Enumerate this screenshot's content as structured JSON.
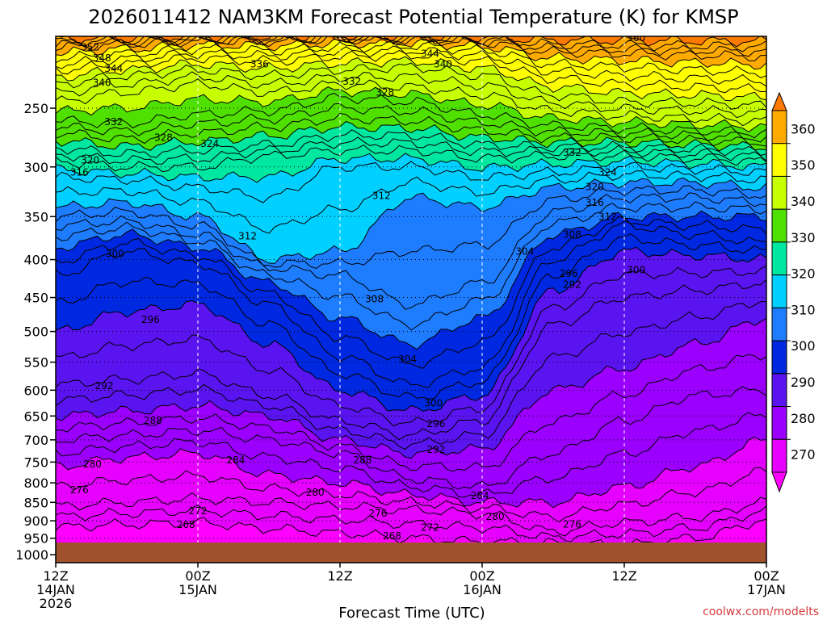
{
  "chart_data": {
    "type": "heatmap",
    "title": "2026011412 NAM3KM Forecast Potential Temperature (K) for KMSP",
    "xlabel": "Forecast Time (UTC)",
    "ylabel": "",
    "credit": "coolwx.com/modelts",
    "x_ticks": [
      {
        "hour": 0,
        "l1": "12Z",
        "l2": "14JAN",
        "l3": "2026"
      },
      {
        "hour": 12,
        "l1": "00Z",
        "l2": "15JAN",
        "l3": ""
      },
      {
        "hour": 24,
        "l1": "12Z",
        "l2": "",
        "l3": ""
      },
      {
        "hour": 36,
        "l1": "00Z",
        "l2": "16JAN",
        "l3": ""
      },
      {
        "hour": 48,
        "l1": "12Z",
        "l2": "",
        "l3": ""
      },
      {
        "hour": 60,
        "l1": "00Z",
        "l2": "17JAN",
        "l3": ""
      }
    ],
    "x_range_hours": [
      0,
      60
    ],
    "y_ticks": [
      250,
      300,
      350,
      400,
      450,
      500,
      550,
      600,
      650,
      700,
      750,
      800,
      850,
      900,
      950,
      1000
    ],
    "y_range_hpa": [
      200,
      1025
    ],
    "y_scale": "log-pressure",
    "colorbar": {
      "labels": [
        "360",
        "350",
        "340",
        "330",
        "320",
        "310",
        "300",
        "290",
        "280",
        "270"
      ],
      "colors": [
        "#ff7800",
        "#ffaa00",
        "#ffff00",
        "#c8ff00",
        "#50e000",
        "#00e8a0",
        "#00d0ff",
        "#1e7cff",
        "#0028e0",
        "#5a14f0",
        "#9b00ff",
        "#e600ff",
        "#ff00ff"
      ],
      "range": [
        265,
        365
      ]
    },
    "profile_hours": [
      0,
      6,
      12,
      18,
      24,
      30,
      36,
      42,
      48,
      54,
      60
    ],
    "profiles": [
      {
        "t": 270,
        "p": [
          1000,
          1000,
          1000,
          1000,
          1000,
          1000,
          1000,
          1000,
          1000,
          1000,
          1000
        ]
      },
      {
        "t": 272,
        "p": [
          918,
          910,
          905,
          922,
          935,
          950,
          960,
          965,
          970,
          950,
          900
        ]
      },
      {
        "t": 276,
        "p": [
          860,
          850,
          840,
          850,
          860,
          870,
          880,
          930,
          905,
          890,
          850
        ]
      },
      {
        "t": 280,
        "p": [
          760,
          740,
          730,
          780,
          800,
          830,
          850,
          850,
          810,
          760,
          700
        ]
      },
      {
        "t": 284,
        "p": [
          700,
          690,
          680,
          700,
          730,
          790,
          810,
          730,
          660,
          610,
          600
        ]
      },
      {
        "t": 288,
        "p": [
          650,
          640,
          630,
          650,
          700,
          730,
          720,
          600,
          560,
          520,
          480
        ]
      },
      {
        "t": 292,
        "p": [
          590,
          580,
          570,
          610,
          660,
          690,
          660,
          490,
          450,
          440,
          430
        ]
      },
      {
        "t": 296,
        "p": [
          500,
          470,
          460,
          520,
          600,
          640,
          610,
          440,
          390,
          395,
          400
        ]
      },
      {
        "t": 300,
        "p": [
          420,
          390,
          405,
          460,
          540,
          590,
          560,
          400,
          360,
          370,
          380
        ]
      },
      {
        "t": 304,
        "p": [
          385,
          370,
          385,
          430,
          480,
          520,
          480,
          370,
          350,
          350,
          350
        ]
      },
      {
        "t": 308,
        "p": [
          360,
          355,
          370,
          410,
          420,
          460,
          430,
          345,
          330,
          330,
          335
        ]
      },
      {
        "t": 312,
        "p": [
          340,
          335,
          350,
          400,
          390,
          330,
          340,
          320,
          315,
          315,
          320
        ]
      },
      {
        "t": 316,
        "p": [
          310,
          312,
          320,
          330,
          300,
          300,
          310,
          305,
          300,
          302,
          305
        ]
      },
      {
        "t": 320,
        "p": [
          295,
          300,
          300,
          290,
          285,
          285,
          292,
          290,
          290,
          292,
          295
        ]
      },
      {
        "t": 324,
        "p": [
          283,
          288,
          285,
          280,
          272,
          272,
          280,
          282,
          282,
          284,
          286
        ]
      },
      {
        "t": 328,
        "p": [
          270,
          275,
          270,
          265,
          258,
          260,
          268,
          274,
          274,
          276,
          278
        ]
      },
      {
        "t": 332,
        "p": [
          260,
          262,
          255,
          252,
          242,
          245,
          255,
          264,
          266,
          268,
          270
        ]
      },
      {
        "t": 336,
        "p": [
          245,
          238,
          232,
          238,
          232,
          234,
          240,
          252,
          256,
          258,
          260
        ]
      },
      {
        "t": 340,
        "p": [
          232,
          226,
          222,
          226,
          222,
          220,
          226,
          240,
          245,
          246,
          248
        ]
      },
      {
        "t": 344,
        "p": [
          222,
          218,
          214,
          216,
          213,
          212,
          216,
          228,
          232,
          234,
          236
        ]
      },
      {
        "t": 348,
        "p": [
          214,
          211,
          208,
          209,
          207,
          206,
          209,
          218,
          220,
          222,
          224
        ]
      },
      {
        "t": 352,
        "p": [
          207,
          205,
          203,
          203,
          202,
          202,
          204,
          210,
          211,
          212,
          213
        ]
      },
      {
        "t": 360,
        "p": [
          200,
          200,
          200,
          200,
          200,
          200,
          200,
          200,
          200,
          200,
          200
        ]
      }
    ],
    "contour_labels": [
      {
        "text": "352",
        "hour": 2.9,
        "p": 207
      },
      {
        "text": "348",
        "hour": 3.9,
        "p": 214
      },
      {
        "text": "344",
        "hour": 4.9,
        "p": 221
      },
      {
        "text": "340",
        "hour": 3.9,
        "p": 231
      },
      {
        "text": "336",
        "hour": 17.2,
        "p": 218
      },
      {
        "text": "344",
        "hour": 31.6,
        "p": 211
      },
      {
        "text": "340",
        "hour": 32.7,
        "p": 218
      },
      {
        "text": "360",
        "hour": 49.0,
        "p": 201
      },
      {
        "text": "332",
        "hour": 4.9,
        "p": 261
      },
      {
        "text": "328",
        "hour": 9.1,
        "p": 274
      },
      {
        "text": "324",
        "hour": 13.0,
        "p": 279
      },
      {
        "text": "332",
        "hour": 25.0,
        "p": 230
      },
      {
        "text": "328",
        "hour": 27.8,
        "p": 238
      },
      {
        "text": "320",
        "hour": 2.9,
        "p": 294
      },
      {
        "text": "316",
        "hour": 2.0,
        "p": 305
      },
      {
        "text": "332",
        "hour": 43.6,
        "p": 287
      },
      {
        "text": "324",
        "hour": 46.6,
        "p": 305
      },
      {
        "text": "320",
        "hour": 45.5,
        "p": 319
      },
      {
        "text": "316",
        "hour": 45.5,
        "p": 335
      },
      {
        "text": "312",
        "hour": 46.6,
        "p": 350
      },
      {
        "text": "308",
        "hour": 43.6,
        "p": 370
      },
      {
        "text": "312",
        "hour": 27.5,
        "p": 328
      },
      {
        "text": "312",
        "hour": 16.2,
        "p": 372
      },
      {
        "text": "304",
        "hour": 39.6,
        "p": 390
      },
      {
        "text": "300",
        "hour": 5.0,
        "p": 393
      },
      {
        "text": "296",
        "hour": 43.3,
        "p": 418
      },
      {
        "text": "300",
        "hour": 49.0,
        "p": 413
      },
      {
        "text": "292",
        "hour": 43.6,
        "p": 432
      },
      {
        "text": "308",
        "hour": 26.9,
        "p": 452
      },
      {
        "text": "296",
        "hour": 8.0,
        "p": 482
      },
      {
        "text": "304",
        "hour": 29.7,
        "p": 545
      },
      {
        "text": "292",
        "hour": 4.1,
        "p": 592
      },
      {
        "text": "300",
        "hour": 31.9,
        "p": 625
      },
      {
        "text": "288",
        "hour": 8.2,
        "p": 659
      },
      {
        "text": "296",
        "hour": 32.1,
        "p": 666
      },
      {
        "text": "292",
        "hour": 32.1,
        "p": 722
      },
      {
        "text": "284",
        "hour": 15.2,
        "p": 746
      },
      {
        "text": "288",
        "hour": 25.9,
        "p": 746
      },
      {
        "text": "280",
        "hour": 3.1,
        "p": 755
      },
      {
        "text": "276",
        "hour": 2.0,
        "p": 818
      },
      {
        "text": "280",
        "hour": 21.9,
        "p": 824
      },
      {
        "text": "284",
        "hour": 35.8,
        "p": 833
      },
      {
        "text": "272",
        "hour": 12.0,
        "p": 873
      },
      {
        "text": "276",
        "hour": 27.2,
        "p": 880
      },
      {
        "text": "280",
        "hour": 37.1,
        "p": 888
      },
      {
        "text": "276",
        "hour": 43.6,
        "p": 910
      },
      {
        "text": "268",
        "hour": 11.0,
        "p": 911
      },
      {
        "text": "272",
        "hour": 31.6,
        "p": 919
      },
      {
        "text": "268",
        "hour": 28.4,
        "p": 944
      }
    ]
  }
}
